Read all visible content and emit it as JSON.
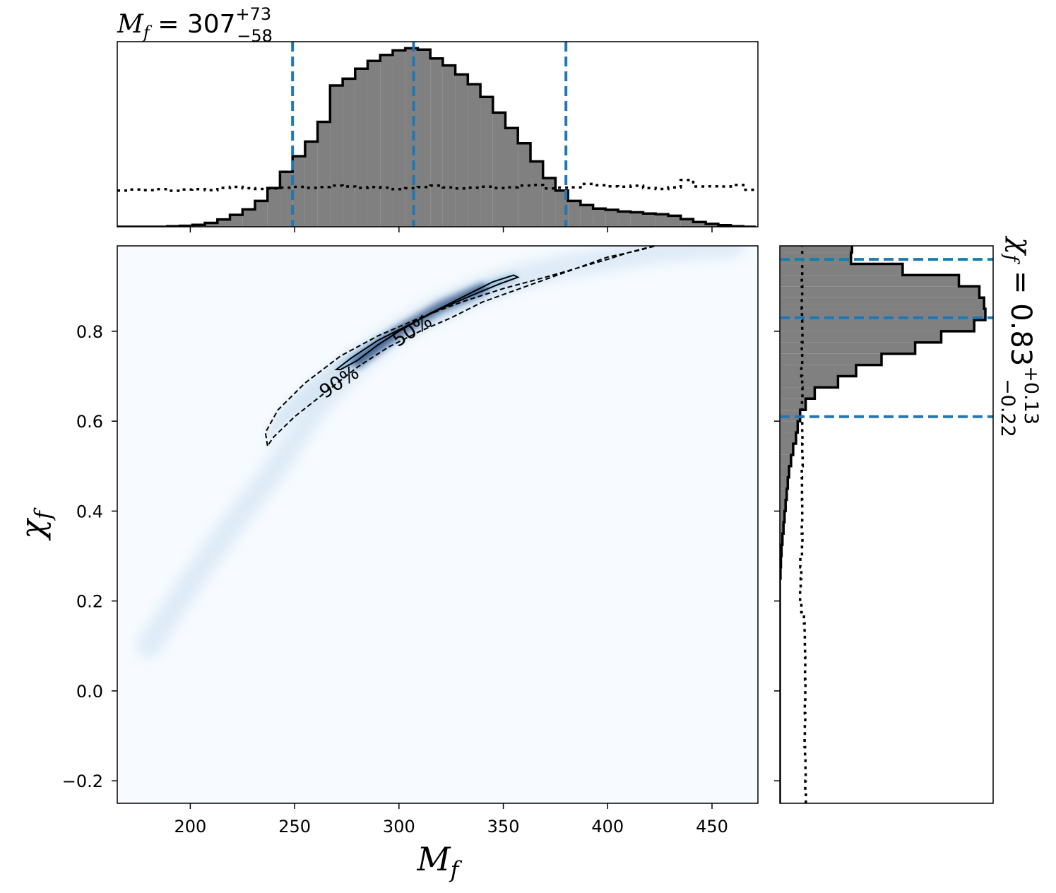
{
  "colors": {
    "background": "#ffffff",
    "hist_fill": "#808080",
    "hist_edge": "#000000",
    "quantile_line": "#1f77b4",
    "heatmap_low": "#f7fbff",
    "heatmap_high": "#08306b",
    "contour": "#000000"
  },
  "chart_data": [
    {
      "id": "joint-posterior",
      "type": "heatmap",
      "xlabel": "M_f",
      "ylabel": "χ_f",
      "xlim": [
        165,
        472
      ],
      "ylim": [
        -0.25,
        0.99
      ],
      "xticks": [
        200,
        250,
        300,
        350,
        400,
        450
      ],
      "yticks": [
        -0.2,
        0.0,
        0.2,
        0.4,
        0.6,
        0.8
      ],
      "xtick_labels": [
        "200",
        "250",
        "300",
        "350",
        "400",
        "450"
      ],
      "ytick_labels": [
        "−0.2",
        "0.0",
        "0.2",
        "0.4",
        "0.6",
        "0.8"
      ],
      "density_ridge": {
        "x": [
          180,
          200,
          220,
          240,
          260,
          280,
          300,
          320,
          340,
          360,
          380,
          400,
          420,
          440,
          460
        ],
        "y": [
          0.1,
          0.24,
          0.37,
          0.49,
          0.63,
          0.73,
          0.8,
          0.855,
          0.895,
          0.925,
          0.945,
          0.96,
          0.975,
          0.985,
          0.99
        ]
      },
      "contours": [
        {
          "level": "90%",
          "style": "dashed",
          "label": "90%",
          "label_position": [
            273,
            0.675
          ],
          "label_rotation": -33,
          "x": [
            237,
            236,
            242,
            255,
            272,
            290,
            310,
            330,
            350,
            370,
            385,
            400,
            410,
            418,
            423,
            415,
            400,
            385,
            370,
            355,
            340,
            325,
            310,
            295,
            280,
            265,
            250,
            240
          ],
          "y": [
            0.545,
            0.575,
            0.625,
            0.685,
            0.745,
            0.79,
            0.83,
            0.865,
            0.895,
            0.92,
            0.94,
            0.96,
            0.975,
            0.985,
            0.99,
            0.98,
            0.965,
            0.94,
            0.915,
            0.89,
            0.865,
            0.83,
            0.8,
            0.765,
            0.72,
            0.665,
            0.61,
            0.565
          ]
        },
        {
          "level": "50%",
          "style": "solid",
          "label": "50%",
          "label_position": [
            308,
            0.79
          ],
          "label_rotation": -33,
          "x": [
            270,
            277,
            290,
            305,
            320,
            335,
            348,
            357,
            355,
            345,
            330,
            315,
            300,
            290,
            280,
            272
          ],
          "y": [
            0.715,
            0.74,
            0.78,
            0.815,
            0.85,
            0.88,
            0.905,
            0.92,
            0.925,
            0.91,
            0.875,
            0.84,
            0.8,
            0.77,
            0.735,
            0.715
          ]
        }
      ]
    },
    {
      "id": "mf-marginal",
      "type": "bar",
      "title": "M_f = 307 (+73, −58)",
      "title_parts": {
        "variable": "M",
        "subscript": "f",
        "equals": " = ",
        "value": "307",
        "plus": "+73",
        "minus": "−58"
      },
      "bin_edges": [
        165,
        171,
        177,
        183,
        189,
        195,
        201,
        207,
        213,
        219,
        225,
        231,
        237,
        243,
        249,
        255,
        261,
        267,
        273,
        279,
        285,
        291,
        297,
        303,
        309,
        315,
        321,
        327,
        333,
        339,
        345,
        351,
        357,
        363,
        369,
        375,
        381,
        387,
        393,
        399,
        405,
        411,
        417,
        423,
        429,
        435,
        441,
        447,
        453,
        459,
        465,
        471
      ],
      "posterior_counts": [
        0,
        0,
        0,
        0,
        0.3,
        0.5,
        1.0,
        2.0,
        3.8,
        6.2,
        9.0,
        13.4,
        20.1,
        28.5,
        36.6,
        44.2,
        54.4,
        73.3,
        76.8,
        82.0,
        86.0,
        89.1,
        91.5,
        92.6,
        91.9,
        87.3,
        83.7,
        79.0,
        73.9,
        67.3,
        59.2,
        51.2,
        43.3,
        33.9,
        25.3,
        18.8,
        13.4,
        11.3,
        9.4,
        8.8,
        7.9,
        7.5,
        6.9,
        6.5,
        5.7,
        4.0,
        2.5,
        1.5,
        0.8,
        0.3,
        0
      ],
      "prior_counts": [
        18.8,
        19.3,
        19.0,
        19.5,
        18.7,
        19.3,
        19.5,
        19.0,
        20.2,
        20.7,
        20.0,
        19.6,
        19.9,
        20.3,
        20.7,
        20.2,
        20.6,
        21.4,
        20.9,
        20.2,
        20.6,
        20.3,
        19.5,
        20.0,
        20.6,
        21.4,
        20.4,
        19.9,
        20.3,
        20.8,
        20.1,
        20.5,
        21.4,
        21.7,
        19.9,
        20.3,
        20.5,
        22.2,
        21.6,
        21.0,
        20.8,
        21.3,
        20.1,
        19.6,
        20.4,
        24.3,
        20.9,
        21.0,
        20.9,
        21.7,
        19.2
      ],
      "quantiles": [
        249,
        307,
        380
      ],
      "xlim": [
        165,
        472
      ],
      "ylim": [
        0,
        96
      ]
    },
    {
      "id": "chi-marginal",
      "type": "bar",
      "orientation": "horizontal",
      "title": "χ_f = 0.83 (+0.13, −0.22)",
      "title_parts": {
        "variable": "χ",
        "subscript": "f",
        "equals": " = ",
        "value": "0.83",
        "plus": "+0.13",
        "minus": "−0.22"
      },
      "bin_edges": [
        -0.25,
        -0.225,
        -0.2,
        -0.175,
        -0.15,
        -0.125,
        -0.1,
        -0.075,
        -0.05,
        -0.025,
        0.0,
        0.025,
        0.05,
        0.075,
        0.1,
        0.125,
        0.15,
        0.175,
        0.2,
        0.225,
        0.25,
        0.275,
        0.3,
        0.325,
        0.35,
        0.375,
        0.4,
        0.425,
        0.45,
        0.475,
        0.5,
        0.525,
        0.55,
        0.575,
        0.6,
        0.625,
        0.65,
        0.675,
        0.7,
        0.725,
        0.75,
        0.775,
        0.8,
        0.825,
        0.85,
        0.875,
        0.9,
        0.925,
        0.95,
        0.975,
        1.0
      ],
      "posterior_counts": [
        0,
        0,
        0,
        0,
        0,
        0,
        0,
        0,
        0,
        0,
        0,
        0,
        0,
        0,
        0,
        0,
        0,
        0,
        0,
        0,
        0.3,
        0.5,
        0.8,
        1.2,
        1.7,
        2.2,
        2.7,
        3.2,
        3.7,
        4.3,
        5.2,
        6.2,
        7.5,
        8.3,
        9.4,
        12.0,
        16.2,
        27.0,
        35.4,
        47.2,
        62.8,
        74.9,
        90.2,
        95.4,
        94.8,
        92.6,
        83.1,
        57.0,
        33.0,
        33.5
      ],
      "prior_counts": [
        12.1,
        11.8,
        12.0,
        11.9,
        11.7,
        11.5,
        11.6,
        11.8,
        11.6,
        11.8,
        11.9,
        11.7,
        11.8,
        11.7,
        11.6,
        11.5,
        11.2,
        10.0,
        9.4,
        9.7,
        10.0,
        9.5,
        10.3,
        10.5,
        10.2,
        10.4,
        10.4,
        10.3,
        10.3,
        10.2,
        10.6,
        10.4,
        10.5,
        10.4,
        10.3,
        10.3,
        10.5,
        10.4,
        10.0,
        10.4,
        10.2,
        10.5,
        10.4,
        10.3,
        10.2,
        10.4,
        10.2,
        10.4,
        10.4,
        10.4
      ],
      "quantiles": [
        0.61,
        0.83,
        0.96
      ],
      "ylim": [
        -0.25,
        0.99
      ],
      "xlim": [
        0,
        99
      ]
    }
  ]
}
